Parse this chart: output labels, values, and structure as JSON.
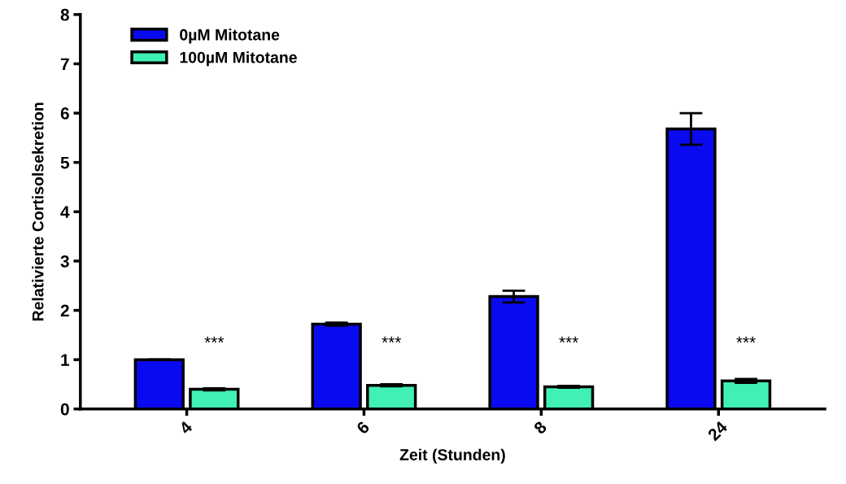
{
  "chart_data": {
    "type": "bar",
    "xlabel": "Zeit (Stunden)",
    "ylabel": "Relativierte Cortisolsekretion",
    "categories": [
      "4",
      "6",
      "8",
      "24"
    ],
    "series": [
      {
        "name": "0µM Mitotane",
        "color": "#0a0af0",
        "values": [
          1.0,
          1.72,
          2.28,
          5.68
        ],
        "errors": [
          null,
          0.03,
          0.12,
          0.32
        ]
      },
      {
        "name": "100µM Mitotane",
        "color": "#40f0b4",
        "values": [
          0.4,
          0.48,
          0.45,
          0.57
        ],
        "errors": [
          0.02,
          0.02,
          0.02,
          0.04
        ]
      }
    ],
    "ylim": [
      0,
      8
    ],
    "yticks": [
      0,
      1,
      2,
      3,
      4,
      5,
      6,
      7,
      8
    ],
    "grid": false,
    "legend": "top left",
    "annotations": [
      "***",
      "***",
      "***",
      "***"
    ]
  }
}
